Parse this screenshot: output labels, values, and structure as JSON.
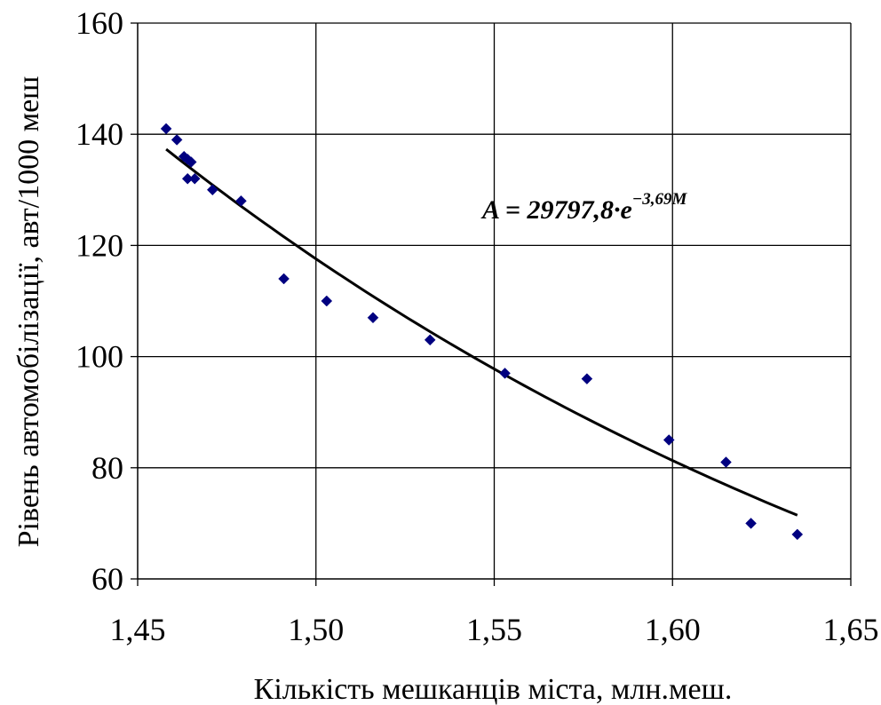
{
  "chart_data": {
    "type": "scatter",
    "title": "",
    "xlabel": "Кількість мешканців міста, млн.меш.",
    "ylabel": "Рівень автомобілізації, авт/1000 меш",
    "xlim": [
      1.45,
      1.65
    ],
    "ylim": [
      60,
      160
    ],
    "x_ticks": [
      "1,45",
      "1,50",
      "1,55",
      "1,60",
      "1,65"
    ],
    "x_tick_values": [
      1.45,
      1.5,
      1.55,
      1.6,
      1.65
    ],
    "y_ticks": [
      "60",
      "80",
      "100",
      "120",
      "140",
      "160"
    ],
    "y_tick_values": [
      60,
      80,
      100,
      120,
      140,
      160
    ],
    "grid": true,
    "series": [
      {
        "kind": "points",
        "marker": "diamond",
        "color": "#000080",
        "points": [
          [
            1.458,
            141
          ],
          [
            1.461,
            139
          ],
          [
            1.463,
            136
          ],
          [
            1.464,
            135.5
          ],
          [
            1.465,
            135
          ],
          [
            1.464,
            132
          ],
          [
            1.466,
            132
          ],
          [
            1.471,
            130
          ],
          [
            1.479,
            128
          ],
          [
            1.491,
            114
          ],
          [
            1.503,
            110
          ],
          [
            1.516,
            107
          ],
          [
            1.532,
            103
          ],
          [
            1.553,
            97
          ],
          [
            1.576,
            96
          ],
          [
            1.599,
            85
          ],
          [
            1.615,
            81
          ],
          [
            1.622,
            70
          ],
          [
            1.635,
            68
          ]
        ]
      },
      {
        "kind": "trendline",
        "color": "#000000",
        "function": "exponential",
        "coefficient": 29797.8,
        "exponent": -3.69,
        "x_range": [
          1.458,
          1.635
        ]
      }
    ],
    "annotation": {
      "lhs": "A",
      "rhs": " = 29797,8·e",
      "superscript": "−3,69M"
    }
  }
}
